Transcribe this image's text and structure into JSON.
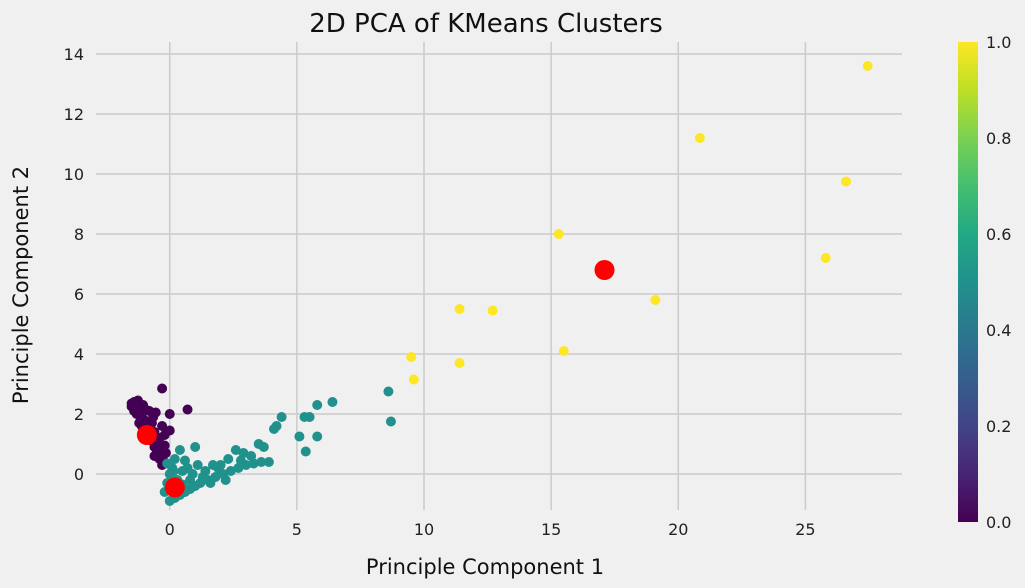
{
  "chart_data": {
    "type": "scatter",
    "title": "2D PCA of KMeans Clusters",
    "xlabel": "Principle Component 1",
    "ylabel": "Principle Component 2",
    "xlim": [
      -2.9,
      28.8
    ],
    "ylim": [
      -1.2,
      14.4
    ],
    "xticks": [
      0,
      5,
      10,
      15,
      20,
      25
    ],
    "yticks": [
      0,
      2,
      4,
      6,
      8,
      10,
      12,
      14
    ],
    "grid": true,
    "colorbar": {
      "colormap": "viridis",
      "range": [
        0.0,
        1.0
      ],
      "ticks": [
        "0.0",
        "0.2",
        "0.4",
        "0.6",
        "0.8",
        "1.0"
      ]
    },
    "series": [
      {
        "color": "#440154",
        "points": [
          [
            -1.5,
            2.35
          ],
          [
            -1.4,
            2.4
          ],
          [
            -1.3,
            2.3
          ],
          [
            -1.2,
            2.2
          ],
          [
            -1.1,
            2.0
          ],
          [
            -1.3,
            2.0
          ],
          [
            -1.0,
            1.8
          ],
          [
            -1.1,
            1.6
          ],
          [
            -0.9,
            1.5
          ],
          [
            -0.8,
            1.3
          ],
          [
            -0.7,
            1.1
          ],
          [
            -0.6,
            0.9
          ],
          [
            -0.5,
            0.7
          ],
          [
            -0.4,
            0.5
          ],
          [
            -0.3,
            0.3
          ],
          [
            -0.8,
            2.1
          ],
          [
            -0.7,
            1.7
          ],
          [
            -0.6,
            1.4
          ],
          [
            -0.4,
            1.2
          ],
          [
            -1.2,
            1.7
          ],
          [
            -1.4,
            2.1
          ],
          [
            -1.5,
            2.25
          ],
          [
            -1.25,
            2.45
          ],
          [
            -0.95,
            2.15
          ],
          [
            -0.5,
            1.0
          ],
          [
            -0.35,
            0.8
          ],
          [
            -0.6,
            0.6
          ],
          [
            -0.25,
            0.45
          ],
          [
            -0.3,
            1.6
          ],
          [
            0.0,
            1.45
          ],
          [
            -0.2,
            0.95
          ],
          [
            -0.15,
            0.7
          ],
          [
            -0.3,
            2.85
          ],
          [
            0.0,
            2.0
          ],
          [
            0.7,
            2.15
          ],
          [
            -0.55,
            2.05
          ],
          [
            -0.7,
            1.2
          ],
          [
            -0.85,
            1.4
          ],
          [
            -0.45,
            0.95
          ],
          [
            -1.05,
            2.3
          ],
          [
            -0.65,
            1.9
          ],
          [
            -0.2,
            1.3
          ]
        ]
      },
      {
        "color": "#21918c",
        "points": [
          [
            0.0,
            -0.9
          ],
          [
            0.2,
            -0.8
          ],
          [
            0.4,
            -0.7
          ],
          [
            0.6,
            -0.6
          ],
          [
            0.8,
            -0.5
          ],
          [
            1.0,
            -0.4
          ],
          [
            1.2,
            -0.3
          ],
          [
            1.5,
            -0.2
          ],
          [
            1.8,
            -0.1
          ],
          [
            2.1,
            0.0
          ],
          [
            2.4,
            0.1
          ],
          [
            2.7,
            0.2
          ],
          [
            3.0,
            0.3
          ],
          [
            3.3,
            0.35
          ],
          [
            3.6,
            0.4
          ],
          [
            3.9,
            0.4
          ],
          [
            -0.2,
            -0.6
          ],
          [
            -0.1,
            -0.3
          ],
          [
            0.0,
            0.0
          ],
          [
            0.1,
            0.2
          ],
          [
            0.3,
            -0.2
          ],
          [
            0.5,
            0.1
          ],
          [
            0.7,
            0.2
          ],
          [
            0.9,
            0.0
          ],
          [
            1.1,
            0.3
          ],
          [
            1.4,
            0.1
          ],
          [
            1.7,
            0.3
          ],
          [
            2.0,
            0.3
          ],
          [
            2.3,
            0.5
          ],
          [
            2.6,
            0.8
          ],
          [
            2.9,
            0.7
          ],
          [
            3.2,
            0.6
          ],
          [
            3.5,
            1.0
          ],
          [
            3.7,
            0.9
          ],
          [
            0.4,
            0.8
          ],
          [
            1.0,
            0.9
          ],
          [
            0.2,
            0.5
          ],
          [
            -0.1,
            0.35
          ],
          [
            0.6,
            0.45
          ],
          [
            1.3,
            -0.1
          ],
          [
            1.6,
            -0.3
          ],
          [
            2.2,
            -0.2
          ],
          [
            4.1,
            1.5
          ],
          [
            4.2,
            1.6
          ],
          [
            4.4,
            1.9
          ],
          [
            5.1,
            1.25
          ],
          [
            5.3,
            1.9
          ],
          [
            5.5,
            1.9
          ],
          [
            5.35,
            0.75
          ],
          [
            5.8,
            1.25
          ],
          [
            5.8,
            2.3
          ],
          [
            6.4,
            2.4
          ],
          [
            8.6,
            2.75
          ],
          [
            8.7,
            1.75
          ],
          [
            0.3,
            -0.5
          ],
          [
            0.8,
            -0.2
          ],
          [
            1.9,
            0.2
          ],
          [
            2.8,
            0.45
          ],
          [
            0.15,
            0.1
          ],
          [
            0.5,
            -0.35
          ]
        ]
      },
      {
        "color": "#fde725",
        "points": [
          [
            9.5,
            3.9
          ],
          [
            9.6,
            3.15
          ],
          [
            11.4,
            5.5
          ],
          [
            11.4,
            3.7
          ],
          [
            12.7,
            5.45
          ],
          [
            15.3,
            8.0
          ],
          [
            15.5,
            4.1
          ],
          [
            19.1,
            5.8
          ],
          [
            20.85,
            11.2
          ],
          [
            25.8,
            7.2
          ],
          [
            26.6,
            9.75
          ],
          [
            27.45,
            13.6
          ]
        ]
      }
    ],
    "centroids": [
      [
        -0.9,
        1.3
      ],
      [
        0.2,
        -0.45
      ],
      [
        17.1,
        6.8
      ]
    ],
    "centroid_color": "#ff0000"
  }
}
